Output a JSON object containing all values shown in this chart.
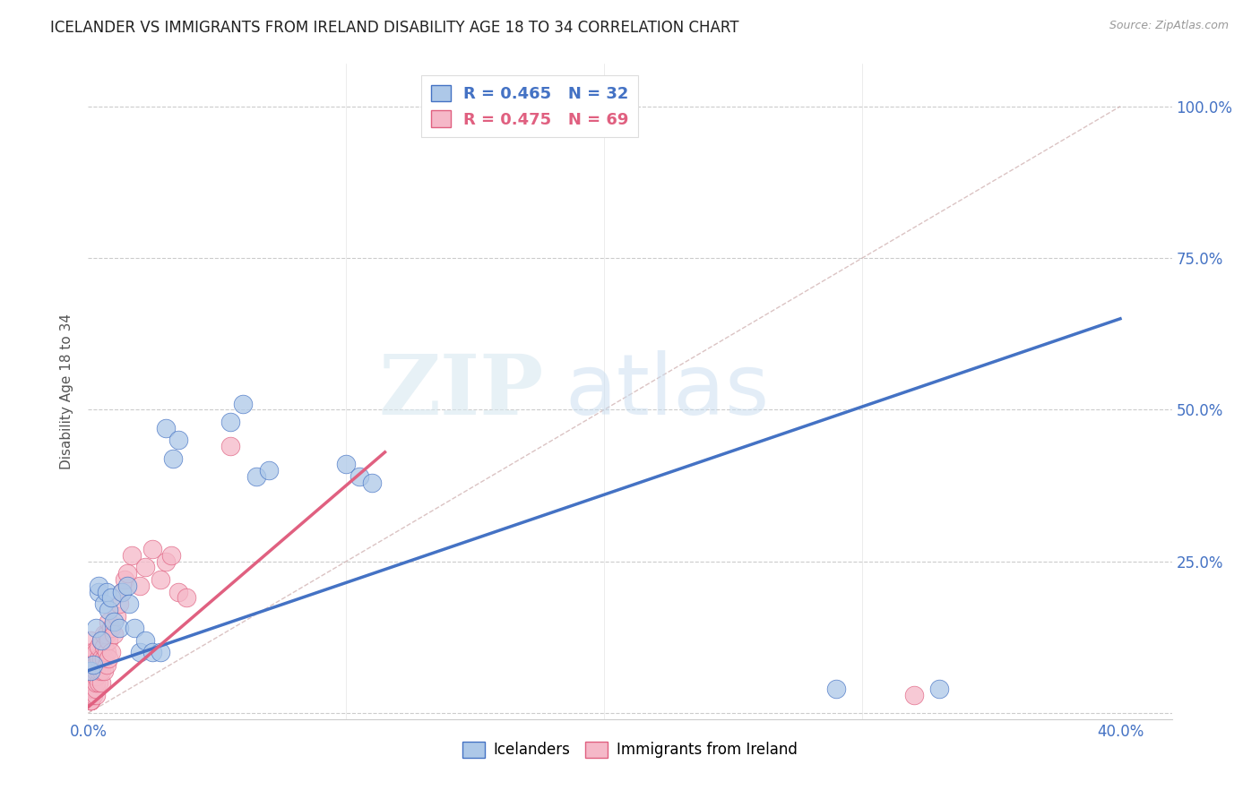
{
  "title": "ICELANDER VS IMMIGRANTS FROM IRELAND DISABILITY AGE 18 TO 34 CORRELATION CHART",
  "source": "Source: ZipAtlas.com",
  "ylabel": "Disability Age 18 to 34",
  "x_tick_positions": [
    0.0,
    0.1,
    0.2,
    0.3,
    0.4
  ],
  "x_tick_labels": [
    "0.0%",
    "",
    "",
    "",
    "40.0%"
  ],
  "y_tick_positions": [
    0.0,
    0.25,
    0.5,
    0.75,
    1.0
  ],
  "y_tick_labels": [
    "",
    "25.0%",
    "50.0%",
    "75.0%",
    "100.0%"
  ],
  "xlim": [
    0.0,
    0.42
  ],
  "ylim": [
    -0.01,
    1.07
  ],
  "blue_R": 0.465,
  "blue_N": 32,
  "pink_R": 0.475,
  "pink_N": 69,
  "blue_color": "#adc8e8",
  "pink_color": "#f5b8c8",
  "blue_line_color": "#4472c4",
  "pink_line_color": "#e06080",
  "legend_label_blue": "Icelanders",
  "legend_label_pink": "Immigrants from Ireland",
  "watermark_zip": "ZIP",
  "watermark_atlas": "atlas",
  "blue_points_x": [
    0.001,
    0.002,
    0.003,
    0.004,
    0.004,
    0.005,
    0.006,
    0.007,
    0.008,
    0.009,
    0.01,
    0.012,
    0.013,
    0.015,
    0.016,
    0.018,
    0.02,
    0.022,
    0.025,
    0.028,
    0.03,
    0.033,
    0.035,
    0.055,
    0.06,
    0.065,
    0.07,
    0.1,
    0.105,
    0.11,
    0.29,
    0.33
  ],
  "blue_points_y": [
    0.07,
    0.08,
    0.14,
    0.2,
    0.21,
    0.12,
    0.18,
    0.2,
    0.17,
    0.19,
    0.15,
    0.14,
    0.2,
    0.21,
    0.18,
    0.14,
    0.1,
    0.12,
    0.1,
    0.1,
    0.47,
    0.42,
    0.45,
    0.48,
    0.51,
    0.39,
    0.4,
    0.41,
    0.39,
    0.38,
    0.04,
    0.04
  ],
  "pink_points_x": [
    0.001,
    0.001,
    0.001,
    0.001,
    0.001,
    0.001,
    0.001,
    0.001,
    0.001,
    0.001,
    0.001,
    0.001,
    0.001,
    0.001,
    0.001,
    0.001,
    0.001,
    0.002,
    0.002,
    0.002,
    0.002,
    0.002,
    0.002,
    0.002,
    0.002,
    0.003,
    0.003,
    0.003,
    0.003,
    0.003,
    0.003,
    0.003,
    0.004,
    0.004,
    0.004,
    0.004,
    0.005,
    0.005,
    0.005,
    0.005,
    0.006,
    0.006,
    0.006,
    0.006,
    0.007,
    0.007,
    0.007,
    0.008,
    0.008,
    0.008,
    0.009,
    0.009,
    0.01,
    0.011,
    0.012,
    0.013,
    0.014,
    0.015,
    0.017,
    0.02,
    0.022,
    0.025,
    0.028,
    0.03,
    0.032,
    0.035,
    0.038,
    0.055,
    0.32
  ],
  "pink_points_y": [
    0.02,
    0.02,
    0.02,
    0.02,
    0.02,
    0.03,
    0.03,
    0.03,
    0.04,
    0.04,
    0.05,
    0.06,
    0.07,
    0.08,
    0.09,
    0.1,
    0.12,
    0.03,
    0.04,
    0.05,
    0.06,
    0.07,
    0.08,
    0.09,
    0.1,
    0.03,
    0.04,
    0.05,
    0.06,
    0.07,
    0.08,
    0.1,
    0.05,
    0.07,
    0.09,
    0.11,
    0.05,
    0.07,
    0.09,
    0.12,
    0.07,
    0.09,
    0.11,
    0.13,
    0.08,
    0.1,
    0.13,
    0.09,
    0.12,
    0.15,
    0.1,
    0.14,
    0.13,
    0.16,
    0.18,
    0.2,
    0.22,
    0.23,
    0.26,
    0.21,
    0.24,
    0.27,
    0.22,
    0.25,
    0.26,
    0.2,
    0.19,
    0.44,
    0.03
  ],
  "blue_trendline_x": [
    0.0,
    0.4
  ],
  "blue_trendline_y": [
    0.07,
    0.65
  ],
  "pink_trendline_x": [
    0.0,
    0.115
  ],
  "pink_trendline_y": [
    0.01,
    0.43
  ],
  "ref_line_x": [
    0.0,
    0.4
  ],
  "ref_line_y": [
    0.0,
    1.0
  ]
}
